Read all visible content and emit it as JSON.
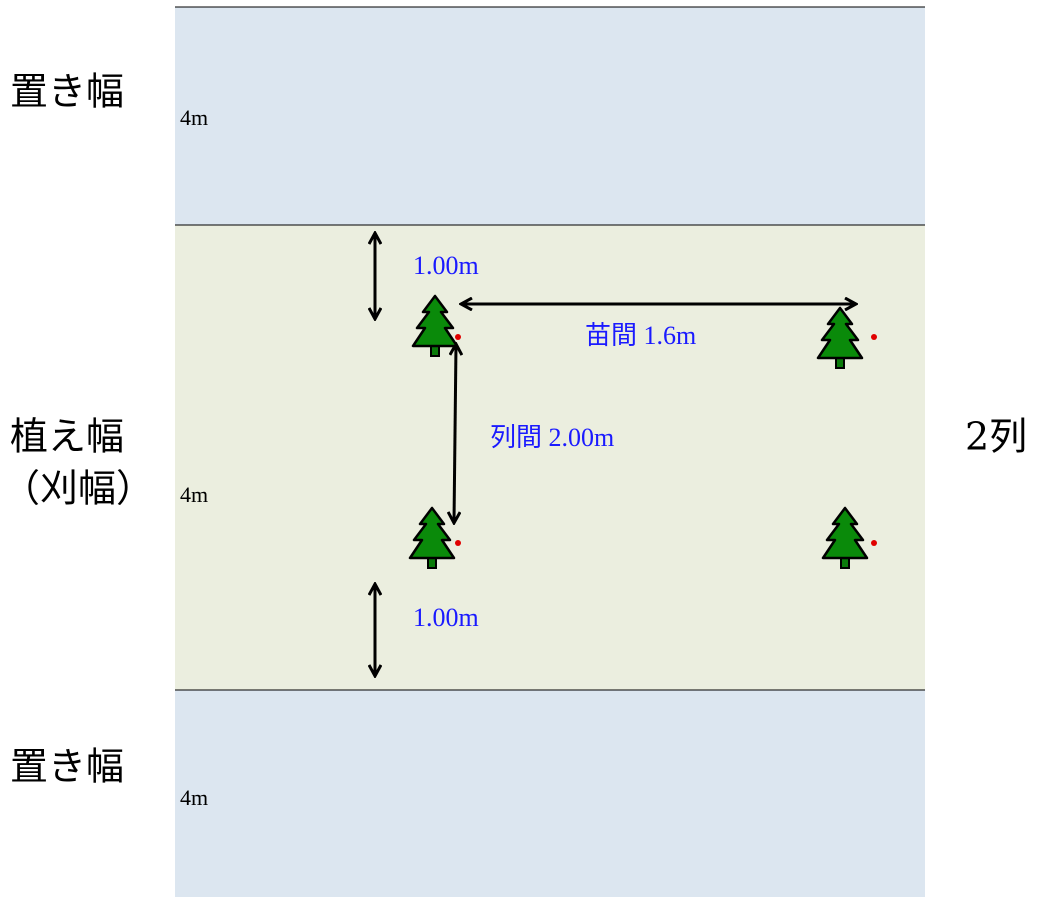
{
  "bands": [
    {
      "label": "置き幅",
      "width": "4m"
    },
    {
      "label": [
        "植え幅",
        "（刈幅）"
      ],
      "width": "4m"
    },
    {
      "label": "置き幅",
      "width": "4m"
    }
  ],
  "annotations": {
    "top_margin": "1.00m",
    "plant_spacing": "苗間 1.6m",
    "row_spacing": "列間 2.00m",
    "bottom_margin": "1.00m"
  },
  "rows": "2列"
}
